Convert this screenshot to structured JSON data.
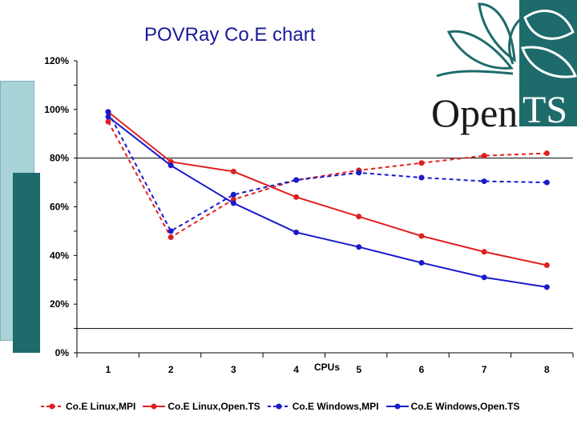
{
  "colors": {
    "red": "#e02020",
    "blue": "#1a1acc",
    "teal_light": "#a8d3d8",
    "teal_dark": "#1e6b6b"
  },
  "logo": {
    "text_open": "Open",
    "text_ts": "TS"
  },
  "chart_data": {
    "type": "line",
    "title": "POVRay Co.E chart",
    "xlabel": "CPUs",
    "ylabel": "",
    "categories": [
      "1",
      "2",
      "3",
      "4",
      "5",
      "6",
      "7",
      "8"
    ],
    "y_ticks": [
      "0%",
      "20%",
      "40%",
      "60%",
      "80%",
      "100%",
      "120%"
    ],
    "ylim": [
      0,
      120
    ],
    "grid": "horizontal lines at 10% and 80%",
    "legend_position": "bottom",
    "series": [
      {
        "name": "Co.E Linux,MPI",
        "color": "#e02020",
        "dash": true,
        "values": [
          95,
          47.5,
          63,
          71,
          75,
          78,
          81,
          82
        ]
      },
      {
        "name": "Co.E Linux,Open.TS",
        "color": "#e02020",
        "dash": false,
        "values": [
          99,
          78.5,
          74.5,
          64,
          56,
          48,
          41.5,
          36
        ]
      },
      {
        "name": "Co.E Windows,MPI",
        "color": "#1a1acc",
        "dash": true,
        "values": [
          99,
          50,
          65,
          71,
          74,
          72,
          70.5,
          70
        ]
      },
      {
        "name": "Co.E Windows,Open.TS",
        "color": "#1a1acc",
        "dash": false,
        "values": [
          97,
          77,
          61.5,
          49.5,
          43.5,
          37,
          31,
          27
        ]
      }
    ]
  }
}
